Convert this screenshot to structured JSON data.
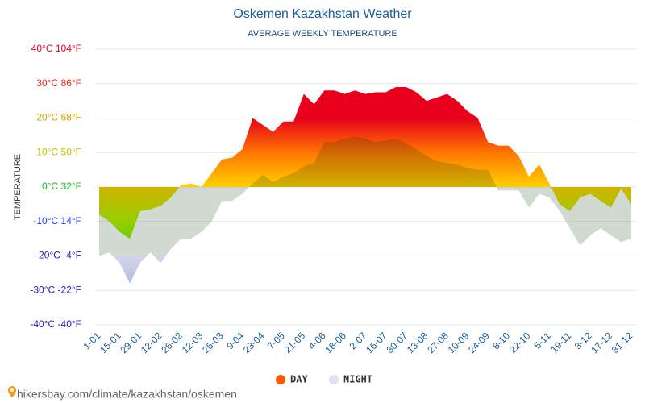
{
  "chart_data": {
    "type": "area",
    "title": "Oskemen Kazakhstan Weather",
    "subtitle": "AVERAGE WEEKLY TEMPERATURE",
    "y_label": "TEMPERATURE",
    "footer": "hikersbay.com/climate/kazakhstan/oskemen",
    "categories": [
      "1-01",
      null,
      "15-01",
      null,
      "29-01",
      null,
      "12-02",
      null,
      "26-02",
      null,
      "12-03",
      null,
      "26-03",
      null,
      "9-04",
      null,
      "23-04",
      null,
      "7-05",
      null,
      "21-05",
      null,
      "4-06",
      null,
      "18-06",
      null,
      "2-07",
      null,
      "16-07",
      null,
      "30-07",
      null,
      "13-08",
      null,
      "27-08",
      null,
      "10-09",
      null,
      "24-09",
      null,
      "8-10",
      null,
      "22-10",
      null,
      "5-11",
      null,
      "19-11",
      null,
      "3-12",
      null,
      "17-12",
      null,
      "31-12"
    ],
    "series": [
      {
        "name": "DAY",
        "color": "#ff5a00",
        "values": [
          -8,
          -10,
          -13,
          -15,
          -7,
          -6.5,
          -5.5,
          -3,
          0.5,
          1,
          0,
          4,
          8,
          8.5,
          11,
          20,
          18,
          16,
          19,
          19,
          27,
          24,
          28,
          28,
          27,
          28,
          27,
          27.5,
          27.5,
          29,
          29,
          27.5,
          25,
          26,
          27,
          25,
          22,
          20,
          13,
          12,
          12,
          9,
          3,
          6.5,
          1,
          -5,
          -7,
          -3,
          -2,
          -4,
          -6,
          -0.5,
          -5
        ]
      },
      {
        "name": "NIGHT",
        "color": "#dde3f0",
        "values": [
          -20,
          -19,
          -22,
          -28,
          -22,
          -19,
          -22,
          -18,
          -15,
          -15,
          -13,
          -10,
          -4,
          -4,
          -2,
          1,
          3.5,
          1.5,
          3,
          4,
          6,
          7,
          13,
          13,
          14,
          14.5,
          14,
          13,
          13.5,
          14,
          12.5,
          11,
          9,
          7.5,
          7,
          6.5,
          5.5,
          5,
          5,
          -1,
          -1,
          -1,
          -6,
          -2,
          -3,
          -7,
          -12,
          -17,
          -14,
          -12,
          -14,
          -16,
          -15
        ]
      }
    ],
    "ylim": [
      -40,
      40
    ],
    "yticks": [
      {
        "value": 40,
        "label": "40°C 104°F"
      },
      {
        "value": 30,
        "label": "30°C 86°F"
      },
      {
        "value": 20,
        "label": "20°C 68°F"
      },
      {
        "value": 10,
        "label": "10°C 50°F"
      },
      {
        "value": 0,
        "label": "0°C 32°F"
      },
      {
        "value": -10,
        "label": "-10°C 14°F"
      },
      {
        "value": -20,
        "label": "-20°C -4°F"
      },
      {
        "value": -30,
        "label": "-30°C -22°F"
      },
      {
        "value": -40,
        "label": "-40°C -40°F"
      }
    ],
    "grid": true
  }
}
